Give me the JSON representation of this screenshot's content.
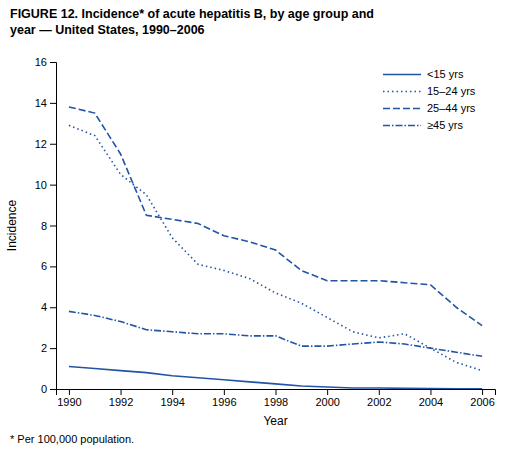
{
  "chart_data": {
    "type": "line",
    "title": [
      "FIGURE 12. Incidence* of acute hepatitis B, by age group and",
      "year — United States, 1990–2006"
    ],
    "annotations": [
      "* Per 100,000 population."
    ],
    "x_label": "Year",
    "y_label": "Incidence",
    "x": [
      1990,
      1991,
      1992,
      1993,
      1994,
      1995,
      1996,
      1997,
      1998,
      1999,
      2000,
      2001,
      2002,
      2003,
      2004,
      2005,
      2006
    ],
    "xlim": [
      1989.5,
      2006.5
    ],
    "xticks": [
      1990,
      1992,
      1994,
      1996,
      1998,
      2000,
      2002,
      2004,
      2006
    ],
    "ylim": [
      0,
      16
    ],
    "yticks": [
      0,
      2,
      4,
      6,
      8,
      10,
      12,
      14,
      16
    ],
    "grid": false,
    "legend": "upper right",
    "series": [
      {
        "name": "<15 yrs",
        "color": "#2255a4",
        "line_style": "solid",
        "values": [
          1.1,
          1.0,
          0.9,
          0.8,
          0.65,
          0.55,
          0.45,
          0.35,
          0.25,
          0.15,
          0.1,
          0.05,
          0.05,
          0.03,
          0.02,
          0.01,
          0.01
        ]
      },
      {
        "name": "15–24 yrs",
        "color": "#2255a4",
        "line_style": "dotted",
        "values": [
          12.9,
          12.4,
          10.5,
          9.5,
          7.4,
          6.1,
          5.8,
          5.4,
          4.7,
          4.2,
          3.5,
          2.8,
          2.5,
          2.7,
          2.0,
          1.3,
          0.9
        ]
      },
      {
        "name": "25–44 yrs",
        "color": "#2255a4",
        "line_style": "dashed",
        "values": [
          13.8,
          13.5,
          11.5,
          8.5,
          8.3,
          8.1,
          7.5,
          7.2,
          6.8,
          5.8,
          5.3,
          5.3,
          5.3,
          5.2,
          5.1,
          4.0,
          3.1
        ]
      },
      {
        "name": "≥45 yrs",
        "color": "#2255a4",
        "line_style": "dashdot",
        "values": [
          3.8,
          3.6,
          3.3,
          2.9,
          2.8,
          2.7,
          2.7,
          2.6,
          2.6,
          2.1,
          2.1,
          2.2,
          2.3,
          2.2,
          2.0,
          1.8,
          1.6
        ]
      }
    ]
  }
}
